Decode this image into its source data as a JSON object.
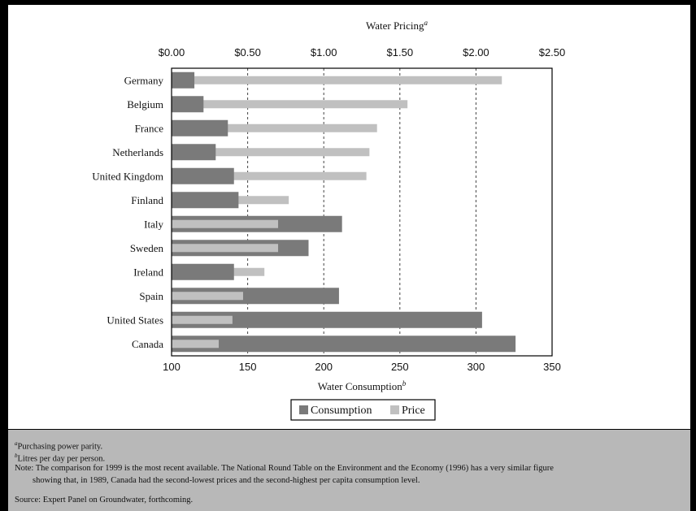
{
  "chart_data": {
    "type": "bar",
    "title": "",
    "top_axis": {
      "label": "Water Pricing",
      "label_superscript": "a",
      "tick_labels": [
        "$0.00",
        "$0.50",
        "$1.00",
        "$1.50",
        "$2.00",
        "$2.50"
      ],
      "range": [
        0,
        2.5
      ],
      "ticks": [
        0,
        0.5,
        1.0,
        1.5,
        2.0,
        2.5
      ]
    },
    "bottom_axis": {
      "label": "Water Consumption",
      "label_superscript": "b",
      "tick_labels": [
        "100",
        "150",
        "200",
        "250",
        "300",
        "350"
      ],
      "range": [
        100,
        350
      ],
      "ticks": [
        100,
        150,
        200,
        250,
        300,
        350
      ]
    },
    "categories": [
      "Germany",
      "Belgium",
      "France",
      "Netherlands",
      "United Kingdom",
      "Finland",
      "Italy",
      "Sweden",
      "Ireland",
      "Spain",
      "United States",
      "Canada"
    ],
    "series": [
      {
        "name": "Consumption",
        "axis": "bottom",
        "color": "#7a7a7a",
        "values": [
          115,
          121,
          137,
          129,
          141,
          144,
          212,
          190,
          141,
          210,
          304,
          326
        ]
      },
      {
        "name": "Price",
        "axis": "top",
        "color": "#c0c0c0",
        "values": [
          2.17,
          1.55,
          1.35,
          1.3,
          1.28,
          0.77,
          0.7,
          0.7,
          0.61,
          0.47,
          0.4,
          0.31
        ]
      }
    ],
    "grid": "vertical dashed",
    "legend_position": "bottom-center",
    "legend": [
      {
        "label": "Consumption",
        "color": "#7a7a7a"
      },
      {
        "label": "Price",
        "color": "#c0c0c0"
      }
    ]
  },
  "notes": {
    "footnote_a": {
      "mark": "a",
      "text": "Purchasing power parity."
    },
    "footnote_b": {
      "mark": "b",
      "text": "Litres per day per person."
    },
    "note_line1": "Note: The comparison for 1999 is the most recent available. The National Round Table on the Environment and the Economy (1996) has a very similar figure",
    "note_line2": "showing that, in 1989, Canada had the second-lowest prices and the second-highest per capita consumption level.",
    "source": "Source: Expert Panel on Groundwater, forthcoming."
  }
}
